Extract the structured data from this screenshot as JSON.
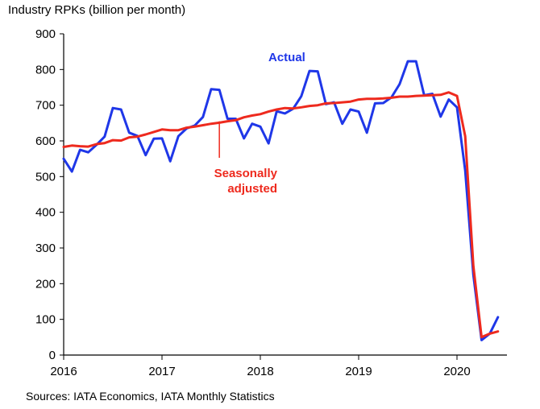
{
  "chart_data": {
    "type": "line",
    "title": "",
    "ylabel": "Industry RPKs (billion per month)",
    "xlabel": "",
    "source": "Sources: IATA Economics, IATA Monthly Statistics",
    "ylim": [
      0,
      900
    ],
    "xlim": [
      "2016-01",
      "2020-06"
    ],
    "yticks": [
      "0",
      "100",
      "200",
      "300",
      "400",
      "500",
      "600",
      "700",
      "800",
      "900"
    ],
    "xticks": [
      "2016",
      "2017",
      "2018",
      "2019",
      "2020"
    ],
    "grid": false,
    "legend": "inline annotations",
    "x": [
      "2016-01",
      "2016-02",
      "2016-03",
      "2016-04",
      "2016-05",
      "2016-06",
      "2016-07",
      "2016-08",
      "2016-09",
      "2016-10",
      "2016-11",
      "2016-12",
      "2017-01",
      "2017-02",
      "2017-03",
      "2017-04",
      "2017-05",
      "2017-06",
      "2017-07",
      "2017-08",
      "2017-09",
      "2017-10",
      "2017-11",
      "2017-12",
      "2018-01",
      "2018-02",
      "2018-03",
      "2018-04",
      "2018-05",
      "2018-06",
      "2018-07",
      "2018-08",
      "2018-09",
      "2018-10",
      "2018-11",
      "2018-12",
      "2019-01",
      "2019-02",
      "2019-03",
      "2019-04",
      "2019-05",
      "2019-06",
      "2019-07",
      "2019-08",
      "2019-09",
      "2019-10",
      "2019-11",
      "2019-12",
      "2020-01",
      "2020-02",
      "2020-03",
      "2020-04",
      "2020-05",
      "2020-06"
    ],
    "series": [
      {
        "name": "Actual",
        "color": "#1f37e8",
        "values": [
          550,
          514,
          575,
          568,
          589,
          612,
          692,
          688,
          623,
          614,
          560,
          606,
          607,
          543,
          613,
          635,
          643,
          667,
          745,
          743,
          662,
          662,
          607,
          648,
          640,
          593,
          683,
          677,
          690,
          725,
          796,
          795,
          703,
          708,
          648,
          688,
          682,
          623,
          705,
          706,
          722,
          759,
          823,
          823,
          728,
          732,
          668,
          716,
          694,
          517,
          225,
          42,
          60,
          106
        ]
      },
      {
        "name": "Seasonally adjusted",
        "color": "#ee2a1e",
        "values": [
          583,
          587,
          585,
          584,
          591,
          594,
          602,
          601,
          610,
          612,
          618,
          625,
          632,
          630,
          630,
          637,
          640,
          644,
          648,
          651,
          655,
          658,
          666,
          671,
          675,
          682,
          688,
          692,
          691,
          694,
          698,
          700,
          705,
          706,
          708,
          710,
          716,
          718,
          718,
          719,
          721,
          724,
          724,
          726,
          727,
          728,
          729,
          736,
          726,
          613,
          250,
          50,
          60,
          66
        ]
      }
    ],
    "annotations": [
      {
        "text_lines": [
          "Actual"
        ],
        "series": "Actual",
        "color": "#1f37e8"
      },
      {
        "text_lines": [
          "Seasonally",
          "adjusted"
        ],
        "series": "Seasonally adjusted",
        "color": "#ee2a1e"
      }
    ]
  }
}
